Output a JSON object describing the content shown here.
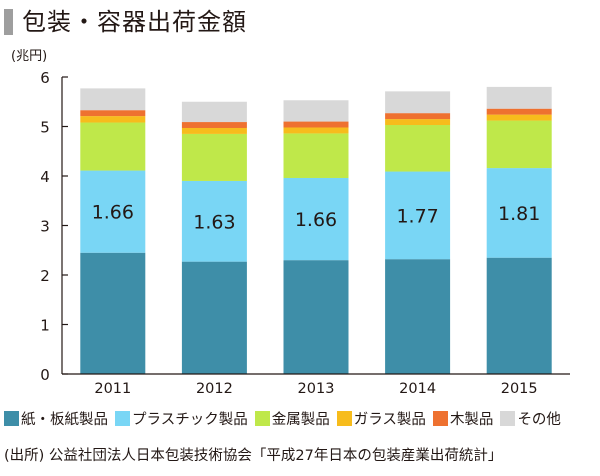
{
  "title": "包装・容器出荷金額",
  "source": "(出所) 公益社団法人日本包装技術協会「平成27年日本の包装産業出荷統計」",
  "chart_data": {
    "type": "bar",
    "stacked": true,
    "unit_label": "(兆円)",
    "categories": [
      "2011",
      "2012",
      "2013",
      "2014",
      "2015"
    ],
    "ylim": [
      0,
      6
    ],
    "yticks": [
      0,
      1,
      2,
      3,
      4,
      5,
      6
    ],
    "grid": false,
    "legend_position": "bottom",
    "series": [
      {
        "name": "紙・板紙製品",
        "color": "#3e8ea8",
        "values": [
          2.45,
          2.27,
          2.3,
          2.32,
          2.35
        ]
      },
      {
        "name": "プラスチック製品",
        "color": "#79d6f5",
        "values": [
          1.66,
          1.63,
          1.66,
          1.77,
          1.81
        ]
      },
      {
        "name": "金属製品",
        "color": "#bfe84a",
        "values": [
          0.97,
          0.95,
          0.9,
          0.94,
          0.96
        ]
      },
      {
        "name": "ガラス製品",
        "color": "#f7bc1c",
        "values": [
          0.13,
          0.12,
          0.12,
          0.12,
          0.12
        ]
      },
      {
        "name": "木製品",
        "color": "#ee7130",
        "values": [
          0.12,
          0.12,
          0.12,
          0.12,
          0.12
        ]
      },
      {
        "name": "その他",
        "color": "#d8d8d8",
        "values": [
          0.44,
          0.41,
          0.43,
          0.44,
          0.44
        ]
      }
    ],
    "data_labels": {
      "series": "プラスチック製品",
      "labels": [
        "1.66",
        "1.63",
        "1.66",
        "1.77",
        "1.81"
      ]
    }
  }
}
